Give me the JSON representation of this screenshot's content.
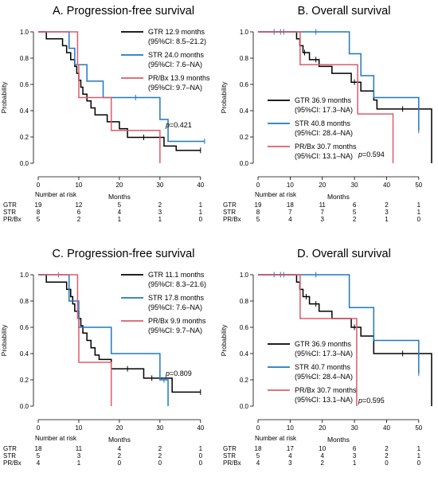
{
  "colors": {
    "GTR": "#000000",
    "STR": "#1f78c1",
    "PR/Bx": "#dd5b6b"
  },
  "chart_data": [
    {
      "type": "line",
      "title": "A. Progression-free survival",
      "xlabel": "Months",
      "ylabel": "Probability",
      "xlim": [
        0,
        42
      ],
      "ylim": [
        0,
        1
      ],
      "xticks": [
        0,
        10,
        20,
        30,
        40
      ],
      "yticks": [
        0.0,
        0.2,
        0.4,
        0.6,
        0.8,
        1.0
      ],
      "legend_position": "top-right",
      "p_value": "=0.421",
      "legend": [
        {
          "group": "GTR",
          "line1": "GTR 12.9 months",
          "line2": "(95%CI: 8.5–21.2)"
        },
        {
          "group": "STR",
          "line1": "STR 24.0 months",
          "line2": "(95%CI: 7.6–NA)"
        },
        {
          "group": "PR/Bx",
          "line1": "PR/Bx 13.9 months",
          "line2": "(95%CI: 9.7–NA)"
        }
      ],
      "series": [
        {
          "group": "GTR",
          "steps": [
            [
              0,
              1
            ],
            [
              2,
              0.947
            ],
            [
              6,
              0.895
            ],
            [
              7,
              0.842
            ],
            [
              8,
              0.789
            ],
            [
              9,
              0.737
            ],
            [
              9.5,
              0.684
            ],
            [
              10,
              0.632
            ],
            [
              10.5,
              0.579
            ],
            [
              11,
              0.526
            ],
            [
              12,
              0.474
            ],
            [
              13,
              0.421
            ],
            [
              14,
              0.368
            ],
            [
              17,
              0.316
            ],
            [
              20,
              0.263
            ],
            [
              22,
              0.197
            ],
            [
              31,
              0.131
            ],
            [
              34,
              0.098
            ]
          ],
          "end": 40,
          "censor": [
            [
              26,
              0.197
            ],
            [
              40,
              0.098
            ]
          ]
        },
        {
          "group": "STR",
          "steps": [
            [
              0,
              1
            ],
            [
              7.6,
              0.875
            ],
            [
              9,
              0.75
            ],
            [
              12,
              0.625
            ],
            [
              16,
              0.5
            ],
            [
              30,
              0.333
            ],
            [
              32,
              0.167
            ]
          ],
          "end": 41,
          "censor": [
            [
              24,
              0.5
            ],
            [
              41,
              0.167
            ]
          ]
        },
        {
          "group": "PR/Bx",
          "steps": [
            [
              0,
              1
            ],
            [
              9.7,
              0.75
            ],
            [
              10,
              0.5
            ],
            [
              14,
              0.5
            ],
            [
              18,
              0.25
            ],
            [
              30,
              0.0
            ]
          ],
          "end": 30,
          "censor": []
        }
      ],
      "risk_table": {
        "label": "Number at risk",
        "times": [
          0,
          10,
          20,
          30,
          40
        ],
        "rows": [
          {
            "group": "GTR",
            "values": [
              "19",
              "12",
              "5",
              "2",
              "1"
            ]
          },
          {
            "group": "STR",
            "values": [
              "8",
              "6",
              "4",
              "3",
              "1"
            ]
          },
          {
            "group": "PR/Bx",
            "values": [
              "5",
              "2",
              "1",
              "1",
              "0"
            ]
          }
        ]
      }
    },
    {
      "type": "line",
      "title": "B. Overall survival",
      "xlabel": "Months",
      "ylabel": "Probability",
      "xlim": [
        0,
        55
      ],
      "ylim": [
        0,
        1
      ],
      "xticks": [
        0,
        10,
        20,
        30,
        40,
        50
      ],
      "yticks": [
        0.0,
        0.2,
        0.4,
        0.6,
        0.8,
        1.0
      ],
      "legend_position": "bottom-left",
      "p_value": "=0.594",
      "legend": [
        {
          "group": "GTR",
          "line1": "GTR 36.9 months",
          "line2": "(95%CI: 17.3–NA)"
        },
        {
          "group": "STR",
          "line1": "STR 40.8 months",
          "line2": "(95%CI: 28.4–NA)"
        },
        {
          "group": "PR/Bx",
          "line1": "PR/Bx 30.7 months",
          "line2": "(95%CI: 13.1–NA)"
        }
      ],
      "series": [
        {
          "group": "GTR",
          "steps": [
            [
              0,
              1
            ],
            [
              12,
              0.947
            ],
            [
              13,
              0.895
            ],
            [
              14,
              0.842
            ],
            [
              16,
              0.789
            ],
            [
              19,
              0.737
            ],
            [
              23,
              0.684
            ],
            [
              29,
              0.617
            ],
            [
              32,
              0.55
            ],
            [
              36,
              0.481
            ],
            [
              37,
              0.413
            ],
            [
              54,
              0.0
            ]
          ],
          "end": 54,
          "censor": [
            [
              14.5,
              0.842
            ],
            [
              18,
              0.789
            ],
            [
              30,
              0.617
            ],
            [
              45,
              0.413
            ]
          ]
        },
        {
          "group": "STR",
          "steps": [
            [
              0,
              1
            ],
            [
              28.4,
              0.833
            ],
            [
              32,
              0.667
            ],
            [
              36,
              0.5
            ],
            [
              50,
              0.25
            ]
          ],
          "end": 50,
          "censor": [
            [
              5,
              1
            ],
            [
              7,
              1
            ],
            [
              8,
              1
            ],
            [
              18,
              1
            ],
            [
              50,
              0.25
            ]
          ]
        },
        {
          "group": "PR/Bx",
          "steps": [
            [
              0,
              1
            ],
            [
              13.1,
              0.75
            ],
            [
              30,
              0.75
            ],
            [
              31,
              0.375
            ],
            [
              42,
              0.0
            ]
          ],
          "end": 42,
          "censor": []
        }
      ],
      "risk_table": {
        "label": "Number at risk",
        "times": [
          0,
          10,
          20,
          30,
          40,
          50
        ],
        "rows": [
          {
            "group": "GTR",
            "values": [
              "19",
              "18",
              "11",
              "6",
              "2",
              "1"
            ]
          },
          {
            "group": "STR",
            "values": [
              "8",
              "7",
              "7",
              "5",
              "3",
              "1"
            ]
          },
          {
            "group": "PR/Bx",
            "values": [
              "5",
              "4",
              "3",
              "2",
              "1",
              "0"
            ]
          }
        ]
      }
    },
    {
      "type": "line",
      "title": "C. Progression-free survival",
      "xlabel": "Months",
      "ylabel": "Probability",
      "xlim": [
        0,
        42
      ],
      "ylim": [
        0,
        1
      ],
      "xticks": [
        0,
        10,
        20,
        30,
        40
      ],
      "yticks": [
        0.0,
        0.2,
        0.4,
        0.6,
        0.8,
        1.0
      ],
      "legend_position": "top-right",
      "p_value": "=0.809",
      "legend": [
        {
          "group": "GTR",
          "line1": "GTR 11.1 months",
          "line2": "(95%CI: 8.3–21.6)"
        },
        {
          "group": "STR",
          "line1": "STR 17.8 months",
          "line2": "(95%CI: 7.6–NA)"
        },
        {
          "group": "PR/Bx",
          "line1": "PR/Bx 9.9 months",
          "line2": "(95%CI: 9.7–NA)"
        }
      ],
      "series": [
        {
          "group": "GTR",
          "steps": [
            [
              0,
              1
            ],
            [
              2,
              0.944
            ],
            [
              7,
              0.889
            ],
            [
              8,
              0.833
            ],
            [
              8.5,
              0.778
            ],
            [
              9,
              0.722
            ],
            [
              10,
              0.667
            ],
            [
              10.5,
              0.611
            ],
            [
              11,
              0.556
            ],
            [
              12,
              0.5
            ],
            [
              13,
              0.444
            ],
            [
              14,
              0.389
            ],
            [
              15,
              0.355
            ],
            [
              18,
              0.284
            ],
            [
              26,
              0.213
            ],
            [
              33,
              0.107
            ]
          ],
          "end": 40,
          "censor": [
            [
              22,
              0.284
            ],
            [
              28,
              0.213
            ],
            [
              40,
              0.107
            ]
          ]
        },
        {
          "group": "STR",
          "steps": [
            [
              0,
              1
            ],
            [
              7.6,
              0.8
            ],
            [
              10,
              0.6
            ],
            [
              18,
              0.4
            ],
            [
              30,
              0.2
            ],
            [
              32,
              0.0
            ]
          ],
          "end": 32,
          "censor": [
            [
              31,
              0.2
            ]
          ]
        },
        {
          "group": "PR/Bx",
          "steps": [
            [
              0,
              1
            ],
            [
              9.7,
              0.667
            ],
            [
              10,
              0.333
            ],
            [
              18,
              0.0
            ]
          ],
          "end": 18,
          "censor": [
            [
              5,
              1
            ]
          ]
        }
      ],
      "risk_table": {
        "label": "Number at risk",
        "times": [
          0,
          10,
          20,
          30,
          40
        ],
        "rows": [
          {
            "group": "GTR",
            "values": [
              "18",
              "11",
              "4",
              "2",
              "1"
            ]
          },
          {
            "group": "STR",
            "values": [
              "5",
              "3",
              "2",
              "2",
              "0"
            ]
          },
          {
            "group": "PR/Bx",
            "values": [
              "4",
              "1",
              "0",
              "0",
              "0"
            ]
          }
        ]
      }
    },
    {
      "type": "line",
      "title": "D. Overall survival",
      "xlabel": "Months",
      "ylabel": "Probability",
      "xlim": [
        0,
        55
      ],
      "ylim": [
        0,
        1
      ],
      "xticks": [
        0,
        10,
        20,
        30,
        40,
        50
      ],
      "yticks": [
        0.0,
        0.2,
        0.4,
        0.6,
        0.8,
        1.0
      ],
      "legend_position": "bottom-left",
      "p_value": "=0.595",
      "legend": [
        {
          "group": "GTR",
          "line1": "GTR 36.9 months",
          "line2": "(95%CI: 17.3–NA)"
        },
        {
          "group": "STR",
          "line1": "STR 40.7 months",
          "line2": "(95%CI: 28.4–NA)"
        },
        {
          "group": "PR/Bx",
          "line1": "PR/Bx 30.7 months",
          "line2": "(95%CI: 13.1–NA)"
        }
      ],
      "series": [
        {
          "group": "GTR",
          "steps": [
            [
              0,
              1
            ],
            [
              12,
              0.944
            ],
            [
              13,
              0.889
            ],
            [
              14,
              0.833
            ],
            [
              16,
              0.778
            ],
            [
              19,
              0.722
            ],
            [
              23,
              0.667
            ],
            [
              29,
              0.6
            ],
            [
              32,
              0.533
            ],
            [
              36,
              0.4
            ],
            [
              54,
              0.0
            ]
          ],
          "end": 54,
          "censor": [
            [
              15,
              0.833
            ],
            [
              18,
              0.778
            ],
            [
              30,
              0.6
            ],
            [
              45,
              0.4
            ]
          ]
        },
        {
          "group": "STR",
          "steps": [
            [
              0,
              1
            ],
            [
              28.4,
              0.75
            ],
            [
              36,
              0.5
            ],
            [
              50,
              0.25
            ]
          ],
          "end": 50,
          "censor": [
            [
              5,
              1
            ],
            [
              7,
              1
            ],
            [
              8,
              1
            ],
            [
              18,
              1
            ],
            [
              50,
              0.25
            ]
          ]
        },
        {
          "group": "PR/Bx",
          "steps": [
            [
              0,
              1
            ],
            [
              13.1,
              0.667
            ],
            [
              30,
              0.667
            ],
            [
              30.7,
              0.0
            ]
          ],
          "end": 30.7,
          "censor": []
        }
      ],
      "risk_table": {
        "label": "Number at risk",
        "times": [
          0,
          10,
          20,
          30,
          40,
          50
        ],
        "rows": [
          {
            "group": "GTR",
            "values": [
              "18",
              "17",
              "10",
              "6",
              "2",
              "1"
            ]
          },
          {
            "group": "STR",
            "values": [
              "5",
              "4",
              "4",
              "3",
              "2",
              "1"
            ]
          },
          {
            "group": "PR/Bx",
            "values": [
              "4",
              "3",
              "2",
              "1",
              "0",
              "0"
            ]
          }
        ]
      }
    }
  ]
}
